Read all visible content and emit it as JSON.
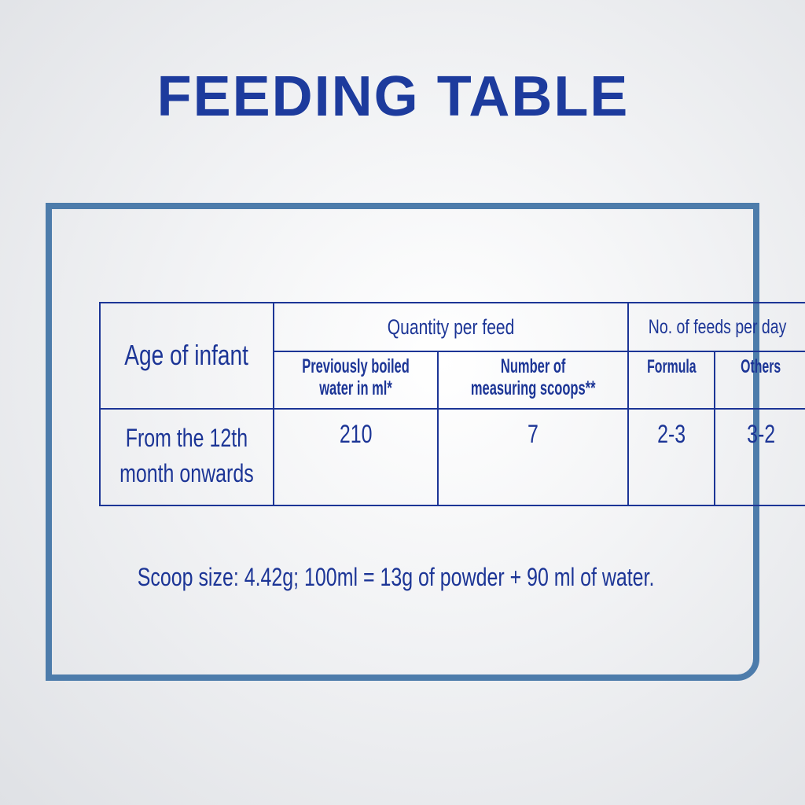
{
  "title": "FEEDING TABLE",
  "table": {
    "age_header": "Age of infant",
    "quantity_header": "Quantity per feed",
    "feeds_header": "No. of feeds per day",
    "water_header_1": "Previously boiled",
    "water_header_2": "water in ml*",
    "scoops_header_1": "Number of",
    "scoops_header_2": "measuring scoops**",
    "formula_header": "Formula",
    "others_header": "Others",
    "rows": [
      {
        "age_1": "From the 12th",
        "age_2": "month onwards",
        "water": "210",
        "scoops": "7",
        "formula": "2-3",
        "others": "3-2"
      }
    ]
  },
  "footnote": "Scoop size: 4.42g; 100ml = 13g of powder + 90 ml of water.",
  "colors": {
    "text": "#1c3596",
    "frame": "#4d7cab"
  }
}
